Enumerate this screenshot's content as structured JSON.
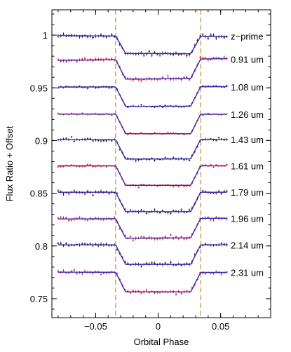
{
  "chart_data": {
    "type": "scatter",
    "title": "",
    "xlabel": "Orbital Phase",
    "ylabel": "Flux Ratio + Offset",
    "xlim": [
      -0.085,
      0.09
    ],
    "ylim": [
      0.732,
      1.024
    ],
    "x_ticks": [
      -0.05,
      0,
      0.05
    ],
    "x_tick_labels": [
      "−0.05",
      "0",
      "0.05"
    ],
    "x_minor_step": 0.01,
    "y_ticks": [
      0.75,
      0.8,
      0.85,
      0.9,
      0.95,
      1.0
    ],
    "y_tick_labels": [
      "0.75",
      "0.8",
      "0.85",
      "0.9",
      "0.95",
      "1"
    ],
    "y_minor_step": 0.01,
    "grid": false,
    "transit_markers": [
      -0.034,
      0.034
    ],
    "transit_marker_color": "#b8862b",
    "model_color": "#e8132b",
    "model_line_color": "#2a2ab8",
    "phase_range": [
      -0.08,
      0.055
    ],
    "ingress": [
      -0.034,
      -0.026
    ],
    "egress": [
      0.026,
      0.034
    ],
    "series": [
      {
        "name": "z−prime",
        "baseline": 0.999,
        "depth": 0.0165,
        "slope": -0.06,
        "noise": 0.0016,
        "color": "#111144"
      },
      {
        "name": "0.91 um",
        "baseline": 0.977,
        "depth": 0.0185,
        "slope": 0.11,
        "noise": 0.0015,
        "color": "#e8132b"
      },
      {
        "name": "1.08 um",
        "baseline": 0.951,
        "depth": 0.0185,
        "slope": 0.03,
        "noise": 0.0009,
        "color": "#111144"
      },
      {
        "name": "1.26 um",
        "baseline": 0.925,
        "depth": 0.0185,
        "slope": -0.02,
        "noise": 0.0008,
        "color": "#e8132b"
      },
      {
        "name": "1.43 um",
        "baseline": 0.901,
        "depth": 0.0185,
        "slope": 0.04,
        "noise": 0.0012,
        "color": "#111144"
      },
      {
        "name": "1.61 um",
        "baseline": 0.876,
        "depth": 0.0185,
        "slope": 0.0,
        "noise": 0.001,
        "color": "#e8132b"
      },
      {
        "name": "1.79 um",
        "baseline": 0.851,
        "depth": 0.0185,
        "slope": 0.0,
        "noise": 0.0014,
        "color": "#111144"
      },
      {
        "name": "1.96 um",
        "baseline": 0.826,
        "depth": 0.0185,
        "slope": 0.05,
        "noise": 0.0015,
        "color": "#e8132b"
      },
      {
        "name": "2.14 um",
        "baseline": 0.801,
        "depth": 0.0185,
        "slope": 0.0,
        "noise": 0.0015,
        "color": "#111144"
      },
      {
        "name": "2.31 um",
        "baseline": 0.775,
        "depth": 0.0185,
        "slope": -0.02,
        "noise": 0.0014,
        "color": "#e8132b"
      }
    ]
  }
}
